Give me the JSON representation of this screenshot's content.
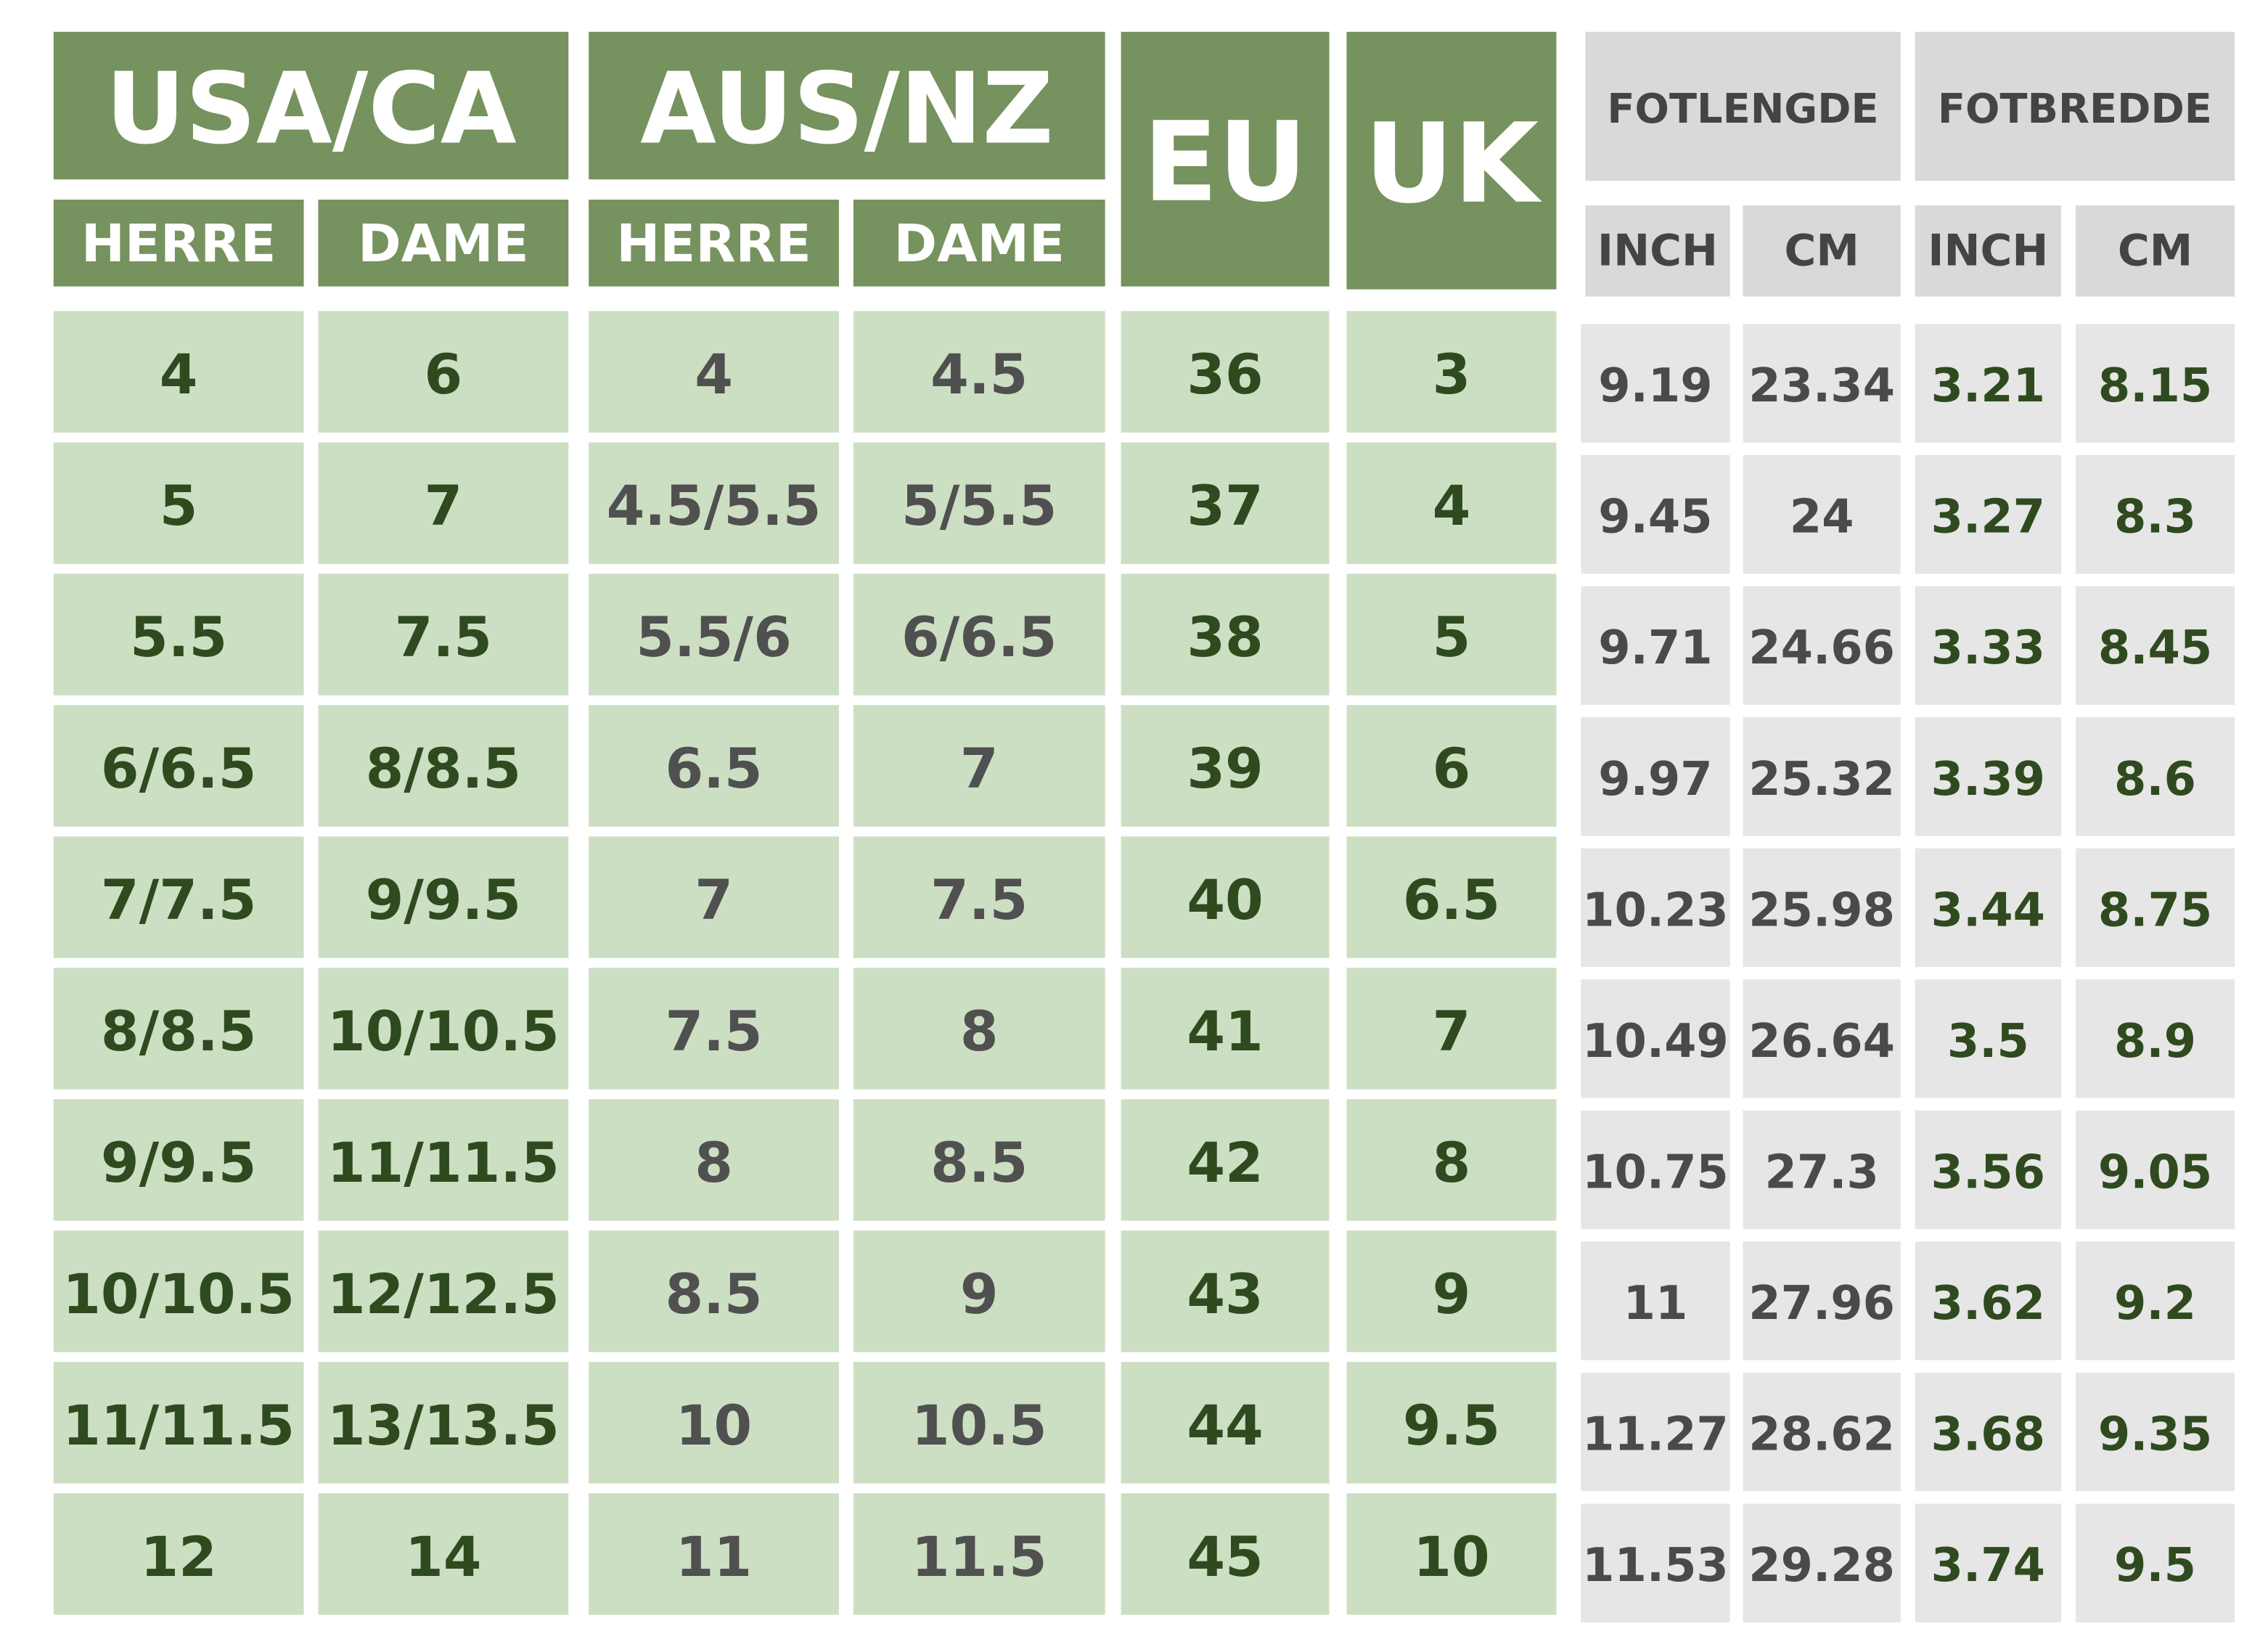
{
  "headers": {
    "groups": [
      "USA/CA",
      "AUS/NZ",
      "EU",
      "UK",
      "FOTLENGDE",
      "FOTBREDDE"
    ],
    "subheaders": [
      "HERRE",
      "DAME",
      "HERRE",
      "DAME",
      "INCH",
      "CM",
      "INCH",
      "CM"
    ]
  },
  "table": {
    "rows": [
      [
        "4",
        "6",
        "4",
        "4.5",
        "36",
        "3",
        "9.19",
        "23.34",
        "3.21",
        "8.15"
      ],
      [
        "5",
        "7",
        "4.5/5.5",
        "5/5.5",
        "37",
        "4",
        "9.45",
        "24",
        "3.27",
        "8.3"
      ],
      [
        "5.5",
        "7.5",
        "5.5/6",
        "6/6.5",
        "38",
        "5",
        "9.71",
        "24.66",
        "3.33",
        "8.45"
      ],
      [
        "6/6.5",
        "8/8.5",
        "6.5",
        "7",
        "39",
        "6",
        "9.97",
        "25.32",
        "3.39",
        "8.6"
      ],
      [
        "7/7.5",
        "9/9.5",
        "7",
        "7.5",
        "40",
        "6.5",
        "10.23",
        "25.98",
        "3.44",
        "8.75"
      ],
      [
        "8/8.5",
        "10/10.5",
        "7.5",
        "8",
        "41",
        "7",
        "10.49",
        "26.64",
        "3.5",
        "8.9"
      ],
      [
        "9/9.5",
        "11/11.5",
        "8",
        "8.5",
        "42",
        "8",
        "10.75",
        "27.3",
        "3.56",
        "9.05"
      ],
      [
        "10/10.5",
        "12/12.5",
        "8.5",
        "9",
        "43",
        "9",
        "11",
        "27.96",
        "3.62",
        "9.2"
      ],
      [
        "11/11.5",
        "13/13.5",
        "10",
        "10.5",
        "44",
        "9.5",
        "11.27",
        "28.62",
        "3.68",
        "9.35"
      ],
      [
        "12",
        "14",
        "11",
        "11.5",
        "45",
        "10",
        "11.53",
        "29.28",
        "3.74",
        "9.5"
      ]
    ]
  }
}
